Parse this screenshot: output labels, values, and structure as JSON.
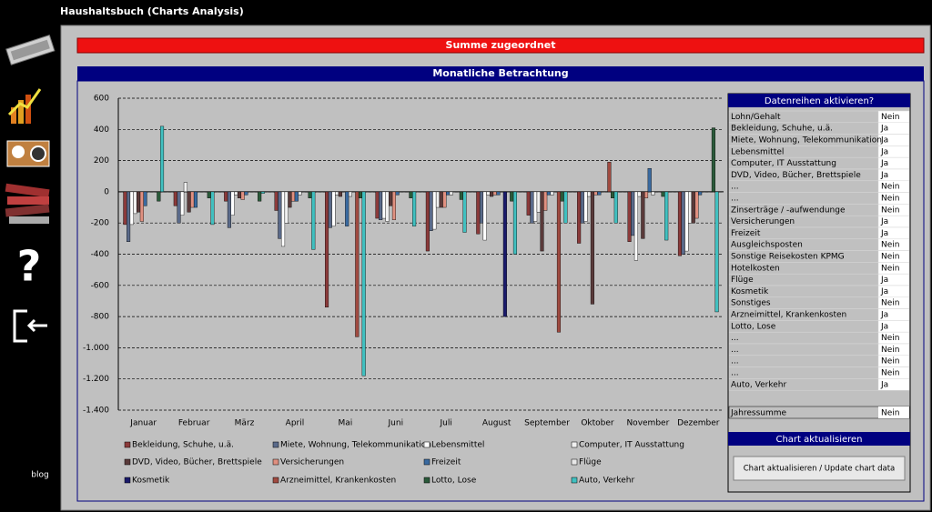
{
  "app": {
    "title": "Haushaltsbuch (Charts Analysis)"
  },
  "sidebar": {
    "help": "?",
    "blog": "blog"
  },
  "banner": "Summe zugeordnet",
  "chart_data": {
    "type": "bar",
    "title": "Monatliche Betrachtung",
    "categories": [
      "Januar",
      "Februar",
      "März",
      "April",
      "Mai",
      "Juni",
      "Juli",
      "August",
      "September",
      "Oktober",
      "November",
      "Dezember"
    ],
    "series": [
      {
        "name": "Bekleidung, Schuhe, u.ä.",
        "color": "#8b3a3a",
        "values": [
          -210,
          -90,
          -60,
          -120,
          -740,
          -170,
          -380,
          -270,
          -150,
          -330,
          -320,
          -410
        ]
      },
      {
        "name": "Miete, Wohnung, Telekommunikation",
        "color": "#5a6a8a",
        "values": [
          -320,
          -200,
          -230,
          -300,
          -230,
          -180,
          -250,
          -200,
          -200,
          -200,
          -280,
          -400
        ]
      },
      {
        "name": "Lebensmittel",
        "color": "#ffffff",
        "values": [
          -210,
          -150,
          -150,
          -350,
          -220,
          -170,
          -240,
          -310,
          -190,
          -190,
          -440,
          -380
        ]
      },
      {
        "name": "Computer, IT Ausstattung",
        "color": "#f0f0f0",
        "values": [
          -140,
          60,
          -20,
          -200,
          -20,
          -190,
          -100,
          -20,
          -130,
          -30,
          -30,
          -200
        ]
      },
      {
        "name": "DVD, Video, Bücher, Brettspiele",
        "color": "#5a3a3a",
        "values": [
          -130,
          -130,
          -40,
          -100,
          -30,
          -90,
          -100,
          -30,
          -380,
          -720,
          -300,
          -200
        ]
      },
      {
        "name": "Versicherungen",
        "color": "#e09080",
        "values": [
          -190,
          -100,
          -50,
          -60,
          0,
          -180,
          -100,
          -20,
          -120,
          -20,
          -40,
          -170
        ]
      },
      {
        "name": "Freizeit",
        "color": "#3a6aa0",
        "values": [
          -90,
          -100,
          -20,
          -60,
          -220,
          -20,
          -20,
          -20,
          -20,
          -20,
          150,
          -20
        ]
      },
      {
        "name": "Flüge",
        "color": "#e8e8e8",
        "values": [
          0,
          0,
          0,
          -20,
          -30,
          0,
          -20,
          0,
          -20,
          0,
          -20,
          0
        ]
      },
      {
        "name": "Kosmetik",
        "color": "#1a1a6a",
        "values": [
          0,
          0,
          0,
          0,
          0,
          0,
          0,
          -800,
          0,
          0,
          0,
          0
        ]
      },
      {
        "name": "Arzneimittel, Krankenkosten",
        "color": "#a04a40",
        "values": [
          0,
          0,
          0,
          0,
          -930,
          0,
          0,
          0,
          -900,
          190,
          0,
          0
        ]
      },
      {
        "name": "Lotto, Lose",
        "color": "#2a5a3a",
        "values": [
          -60,
          -40,
          -60,
          -40,
          -40,
          -40,
          -50,
          -60,
          -60,
          -40,
          -30,
          410
        ]
      },
      {
        "name": "Auto, Verkehr",
        "color": "#40c0c0",
        "values": [
          420,
          -210,
          -10,
          -370,
          -1180,
          -220,
          -260,
          -400,
          -200,
          -200,
          -310,
          -770
        ]
      }
    ],
    "ylim": [
      -1400,
      600
    ],
    "yticks": [
      {
        "value": -1400,
        "label": "-1.400"
      },
      {
        "value": -1200,
        "label": "-1.200"
      },
      {
        "value": -1000,
        "label": "-1.000"
      },
      -800,
      -600,
      -400,
      -200,
      0,
      200,
      400,
      600
    ],
    "grid": true
  },
  "panel": {
    "title": "Datenreihen aktivieren?",
    "rows": [
      [
        "Lohn/Gehalt",
        "Nein"
      ],
      [
        "Bekleidung, Schuhe, u.ä.",
        "Ja"
      ],
      [
        "Miete, Wohnung, Telekommunikation",
        "Ja"
      ],
      [
        "Lebensmittel",
        "Ja"
      ],
      [
        "Computer, IT Ausstattung",
        "Ja"
      ],
      [
        "DVD, Video, Bücher, Brettspiele",
        "Ja"
      ],
      [
        "...",
        "Nein"
      ],
      [
        "...",
        "Nein"
      ],
      [
        "Zinserträge / -aufwendunge",
        "Nein"
      ],
      [
        "Versicherungen",
        "Ja"
      ],
      [
        "Freizeit",
        "Ja"
      ],
      [
        "Ausgleichsposten",
        "Nein"
      ],
      [
        "Sonstige Reisekosten KPMG",
        "Nein"
      ],
      [
        "Hotelkosten",
        "Nein"
      ],
      [
        "Flüge",
        "Ja"
      ],
      [
        "Kosmetik",
        "Ja"
      ],
      [
        "Sonstiges",
        "Nein"
      ],
      [
        "Arzneimittel, Krankenkosten",
        "Ja"
      ],
      [
        "Lotto, Lose",
        "Ja"
      ],
      [
        "...",
        "Nein"
      ],
      [
        "...",
        "Nein"
      ],
      [
        "...",
        "Nein"
      ],
      [
        "...",
        "Nein"
      ],
      [
        "Auto, Verkehr",
        "Ja"
      ]
    ],
    "total": [
      "Jahressumme",
      "Nein"
    ]
  },
  "update": {
    "title": "Chart aktualisieren",
    "button": "Chart aktualisieren / Update chart data"
  }
}
